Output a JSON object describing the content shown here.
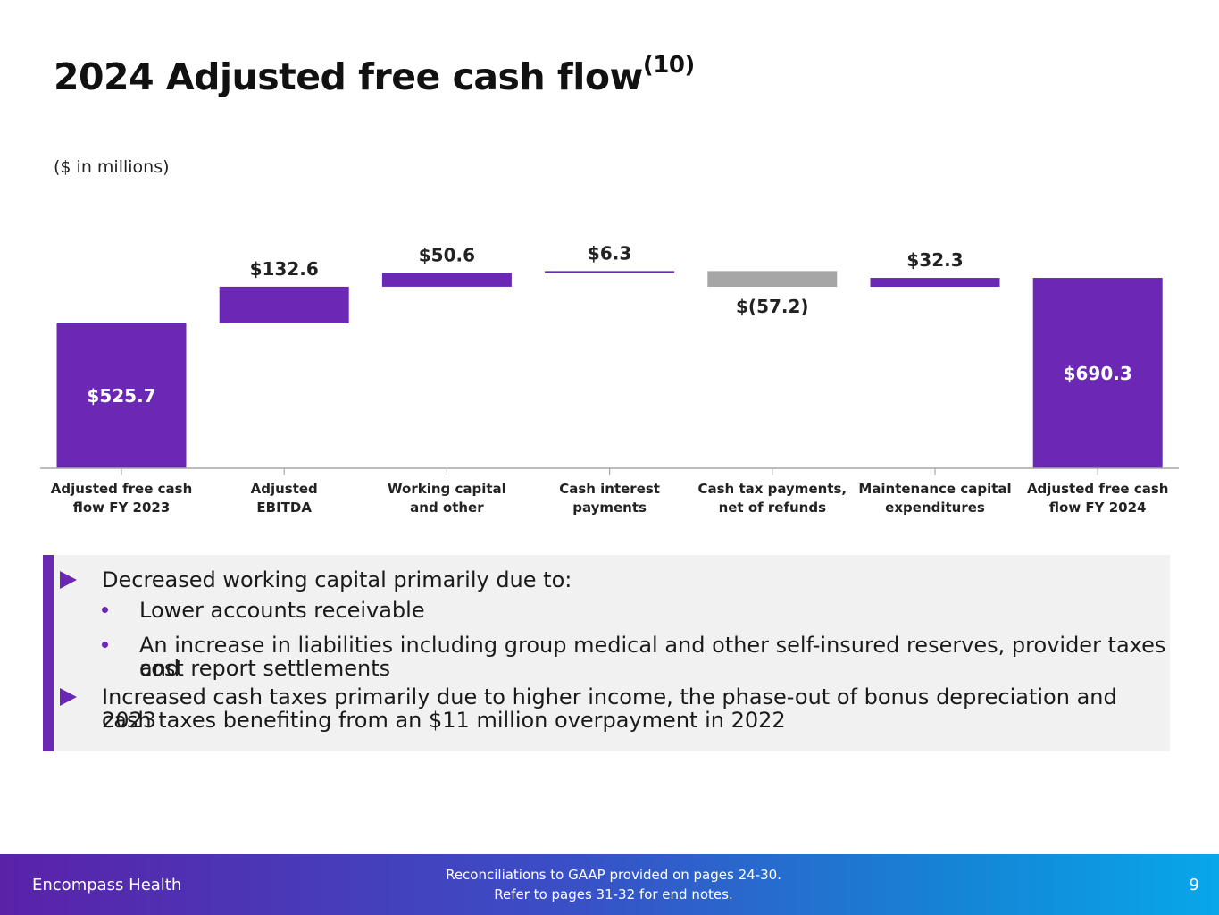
{
  "header": {
    "title": "2024 Adjusted free cash flow",
    "title_sup": "(10)",
    "units": "($ in millions)"
  },
  "chart_data": {
    "type": "bar",
    "subtype": "waterfall",
    "categories": [
      "Adjusted free cash flow FY 2023",
      "Adjusted EBITDA",
      "Working capital and other",
      "Cash interest payments",
      "Cash tax payments, net of refunds",
      "Maintenance capital expenditures",
      "Adjusted free cash flow FY 2024"
    ],
    "category_lines": [
      [
        "Adjusted free cash",
        "flow FY 2023"
      ],
      [
        "Adjusted",
        "EBITDA"
      ],
      [
        "Working capital",
        "and other"
      ],
      [
        "Cash interest",
        "payments"
      ],
      [
        "Cash tax payments,",
        "net of refunds"
      ],
      [
        "Maintenance capital",
        "expenditures"
      ],
      [
        "Adjusted free cash",
        "flow FY 2024"
      ]
    ],
    "values": [
      525.7,
      132.6,
      50.6,
      6.3,
      -57.2,
      32.3,
      690.3
    ],
    "bar_kinds": [
      "total",
      "increase",
      "increase",
      "increase",
      "decrease",
      "increase",
      "total"
    ],
    "value_labels": [
      "$525.7",
      "$132.6",
      "$50.6",
      "$6.3",
      "$(57.2)",
      "$32.3",
      "$690.3"
    ],
    "ylim": [
      0,
      700
    ],
    "grid": false,
    "colors": {
      "increase": "#6a28b4",
      "decrease": "#a6a6a6",
      "total": "#6a28b4",
      "axis": "#a6a6a6"
    }
  },
  "callout": {
    "bullet1": "Decreased working capital primarily due to:",
    "sub1": "Lower accounts receivable",
    "sub2_line1": "An increase in liabilities including group medical and other self-insured reserves, provider taxes and",
    "sub2_line2": "cost report settlements",
    "bullet2_line1": "Increased cash taxes primarily due to higher income, the phase-out of bonus depreciation and 2023",
    "bullet2_line2": "cash taxes benefiting from an $11 million overpayment in 2022"
  },
  "footer": {
    "brand": "Encompass Health",
    "note_line1": "Reconciliations to GAAP provided on pages 24-30.",
    "note_line2": "Refer to pages 31-32 for end notes.",
    "page_number": "9"
  }
}
